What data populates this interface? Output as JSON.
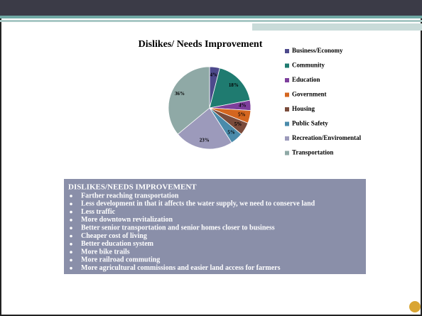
{
  "chart_data": {
    "type": "pie",
    "title": "Dislikes/ Needs Improvement",
    "categories": [
      "Business/Economy",
      "Community",
      "Education",
      "Government",
      "Housing",
      "Public Safety",
      "Recreation/Enviromental",
      "Transportation"
    ],
    "values": [
      4,
      18,
      4,
      5,
      5,
      5,
      23,
      36
    ],
    "value_labels": [
      "4%",
      "18%",
      "4%",
      "5%",
      "5%",
      "5%",
      "23%",
      "36%"
    ],
    "colors": [
      "#4d4a8c",
      "#1f7b70",
      "#7d3f9c",
      "#d4661f",
      "#7a4b3b",
      "#4a8bab",
      "#9c9abb",
      "#8fa9a6"
    ],
    "legend": "right"
  },
  "text_box": {
    "heading": "DISLIKES/NEEDS IMPROVEMENT",
    "bullets": [
      "Farther reaching transportation",
      "Less development in that it affects the water supply, we need to conserve land",
      "Less traffic",
      "More downtown revitalization",
      "Better senior transportation and senior homes closer to business",
      "Cheaper cost of living",
      "Better education system",
      "More bike trails",
      "More railroad commuting",
      "More agricultural commissions and easier land access for farmers"
    ]
  }
}
